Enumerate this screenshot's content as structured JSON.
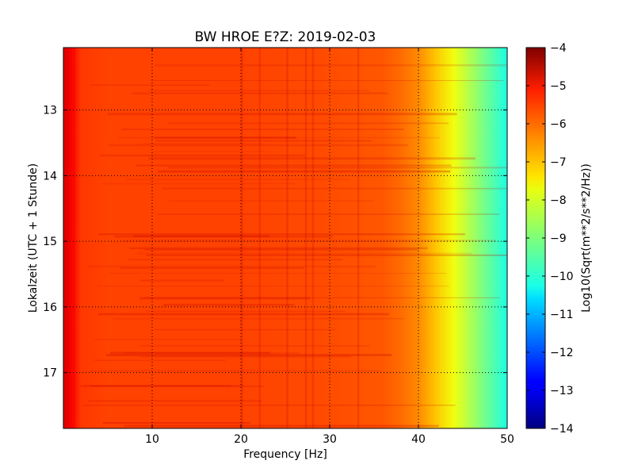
{
  "chart_data": {
    "type": "heatmap",
    "title": "BW HROE E?Z: 2019-02-03",
    "xlabel": "Frequency [Hz]",
    "ylabel": "Lokalzeit (UTC + 1 Stunde)",
    "xlim": [
      0,
      50
    ],
    "ylim": [
      12.05,
      17.85
    ],
    "y_inverted": true,
    "xticks": [
      10,
      20,
      30,
      40,
      50
    ],
    "yticks": [
      13,
      14,
      15,
      16,
      17
    ],
    "grid": true,
    "colorbar": {
      "label": "Log10(Sqrt(m**2/s**2/Hz))",
      "range": [
        -14,
        -4
      ],
      "ticks": [
        -4,
        -5,
        -6,
        -7,
        -8,
        -9,
        -10,
        -11,
        -12,
        -13,
        -14
      ],
      "colormap": "jet"
    },
    "spectrum_profile": {
      "frequency_hz": [
        0,
        0.5,
        1,
        2,
        5,
        10,
        20,
        30,
        36,
        38,
        40,
        42,
        44,
        46,
        48,
        50
      ],
      "log10_amplitude": [
        -5.0,
        -5.0,
        -5.3,
        -5.8,
        -5.9,
        -5.9,
        -5.9,
        -6.0,
        -6.1,
        -6.3,
        -6.6,
        -7.2,
        -7.9,
        -8.6,
        -9.3,
        -10.0
      ]
    }
  }
}
